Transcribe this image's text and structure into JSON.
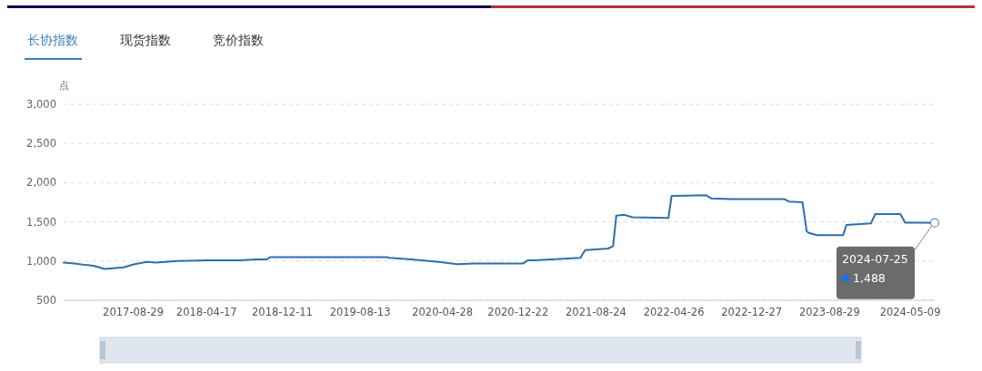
{
  "chart_data": {
    "type": "line",
    "title": "长协指数",
    "ylabel": "点",
    "annotations": [
      "现货指数",
      "竞价指数",
      {
        "text": "2024-07-25",
        "x": "2024-07-25",
        "y": 1488
      },
      "1,488"
    ],
    "x": [
      "2017-01-22",
      "2017-02-25",
      "2017-04-01",
      "2017-04-26",
      "2017-05-31",
      "2017-07-29",
      "2017-09-02",
      "2017-10-11",
      "2017-11-10",
      "2018-01-13",
      "2018-04-18",
      "2018-07-26",
      "2018-09-19",
      "2018-10-23",
      "2018-11-02",
      "2019-11-04",
      "2019-11-14",
      "2020-01-23",
      "2020-04-16",
      "2020-06-14",
      "2020-08-06",
      "2021-01-07",
      "2021-01-22",
      "2021-02-10",
      "2021-07-06",
      "2021-07-21",
      "2021-10-01",
      "2021-10-17",
      "2021-10-27",
      "2021-11-20",
      "2021-12-17",
      "2022-04-09",
      "2022-04-19",
      "2022-08-06",
      "2022-08-21",
      "2022-10-26",
      "2023-04-09",
      "2023-04-24",
      "2023-06-05",
      "2023-06-18",
      "2023-06-25",
      "2023-07-21",
      "2023-10-11",
      "2023-10-21",
      "2024-01-06",
      "2024-01-20",
      "2024-04-08",
      "2024-04-23",
      "2024-07-25"
    ],
    "series": [
      {
        "color": "#2f6fa8",
        "values": [
          980,
          970,
          950,
          940,
          900,
          920,
          960,
          990,
          980,
          1000,
          1010,
          1010,
          1020,
          1020,
          1050,
          1050,
          1040,
          1020,
          990,
          960,
          970,
          970,
          1010,
          1010,
          1040,
          1140,
          1160,
          1190,
          1580,
          1590,
          1560,
          1550,
          1830,
          1840,
          1800,
          1790,
          1790,
          1760,
          1750,
          1380,
          1360,
          1330,
          1330,
          1460,
          1480,
          1600,
          1600,
          1490,
          1488
        ]
      }
    ],
    "xlim": [
      "2017-01-22",
      "2024-07-25"
    ],
    "ylim": [
      500,
      3000
    ],
    "yticks": [
      {
        "value": 500,
        "label": "500"
      },
      {
        "value": 1000,
        "label": "1,000"
      },
      {
        "value": 1500,
        "label": "1,500"
      },
      {
        "value": 2000,
        "label": "2,000"
      },
      {
        "value": 2500,
        "label": "2,500"
      },
      {
        "value": 3000,
        "label": "3,000"
      }
    ],
    "xticks": [
      "2017-08-29",
      "2018-04-17",
      "2018-12-11",
      "2019-08-13",
      "2020-04-28",
      "2020-12-22",
      "2021-08-24",
      "2022-04-26",
      "2022-12-27",
      "2023-08-29",
      "2024-05-09"
    ],
    "grid": "y"
  }
}
